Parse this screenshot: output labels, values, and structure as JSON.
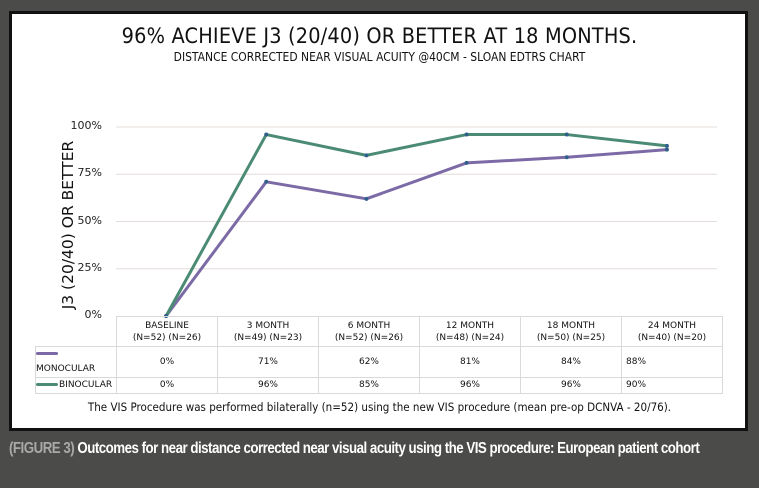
{
  "chart_data": {
    "type": "line",
    "title": "96% ACHIEVE J3 (20/40) OR BETTER AT 18 MONTHS.",
    "subtitle": "DISTANCE CORRECTED NEAR VISUAL ACUITY @40CM - SLOAN EDTRS CHART",
    "ylabel": "J3 (20/40) OR BETTER",
    "xlabel": "",
    "ylim": [
      0,
      100
    ],
    "yticks": [
      "100%",
      "75%",
      "50%",
      "25%",
      "0%"
    ],
    "ytick_values": [
      100,
      75,
      50,
      25,
      0
    ],
    "grid": true,
    "categories": [
      "BASELINE",
      "3 MONTH",
      "6 MONTH",
      "12 MONTH",
      "18 MONTH",
      "24 MONTH"
    ],
    "category_counts": [
      "(N=52) (N=26)",
      "(N=49) (N=23)",
      "(N=52) (N=26)",
      "(N=48) (N=24)",
      "(N=50) (N=25)",
      "(N=40) (N=20)"
    ],
    "series": [
      {
        "name": "MONOCULAR",
        "color": "#7b6aa6",
        "values": [
          0,
          71,
          62,
          81,
          84,
          88
        ],
        "labels": [
          "0%",
          "71%",
          "62%",
          "81%",
          "84%",
          "88%"
        ]
      },
      {
        "name": "BINOCULAR",
        "color": "#4b8b73",
        "values": [
          0,
          96,
          85,
          96,
          96,
          90
        ],
        "labels": [
          "0%",
          "96%",
          "85%",
          "96%",
          "96%",
          "90%"
        ]
      }
    ],
    "legend": "data-table-left",
    "marker_color": "#2f5f8a"
  },
  "note": "The VIS Procedure was performed bilaterally (n=52) using the new VIS procedure (mean pre-op DCNVA - 20/76).",
  "caption": {
    "figure_label": "(FIGURE 3)",
    "text": " Outcomes for near distance corrected near visual acuity using the VIS procedure: European patient cohort"
  }
}
